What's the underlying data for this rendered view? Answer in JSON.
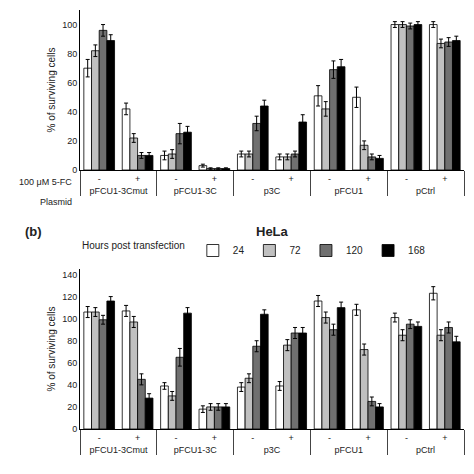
{
  "chart_data": [
    {
      "type": "bar",
      "ylabel": "% of surviving cells",
      "ylim": [
        0,
        110
      ],
      "yticks": [
        0,
        20,
        40,
        60,
        80,
        100
      ],
      "grid": false,
      "groups": [
        "pFCU1-3Cmut",
        "pFCU1-3C",
        "p3C",
        "pFCU1",
        "pCtrl"
      ],
      "categories": [
        "-",
        "+",
        "-",
        "+",
        "-",
        "+",
        "-",
        "+",
        "-",
        "+"
      ],
      "x_row_labels": [
        "100 μM 5-FC",
        "Plasmid"
      ],
      "series": [
        {
          "name": "24",
          "color": "white",
          "values": [
            70,
            42,
            10,
            3,
            11,
            9,
            51,
            50,
            100,
            100
          ],
          "errors": [
            6,
            4,
            3,
            1,
            2,
            2,
            7,
            7,
            2,
            2
          ]
        },
        {
          "name": "72",
          "color": "#c0c0c0",
          "values": [
            82,
            22,
            11,
            1,
            11,
            9,
            42,
            17,
            100,
            87
          ],
          "errors": [
            4,
            3,
            3,
            0.5,
            2,
            2,
            5,
            3,
            2,
            3
          ]
        },
        {
          "name": "120",
          "color": "#707070",
          "values": [
            96,
            10,
            25,
            1,
            32,
            11,
            69,
            9,
            99,
            88
          ],
          "errors": [
            4,
            2,
            7,
            0.5,
            5,
            2,
            6,
            2,
            2,
            3
          ]
        },
        {
          "name": "168",
          "color": "black",
          "values": [
            89,
            10,
            26,
            1,
            44,
            33,
            71,
            8,
            100,
            89
          ],
          "errors": [
            4,
            2,
            4,
            0.5,
            4,
            5,
            5,
            2,
            2,
            3
          ]
        }
      ]
    },
    {
      "type": "bar",
      "title": "HeLa",
      "panel_label": "(b)",
      "ylabel": "% of surviving cells",
      "ylim": [
        0,
        145
      ],
      "yticks": [
        0,
        20,
        40,
        60,
        80,
        100,
        120,
        140
      ],
      "grid": false,
      "legend": "upper left",
      "legend_title": "Hours post transfection",
      "groups": [
        "pFCU1-3Cmut",
        "pFCU1-3C",
        "p3C",
        "pFCU1",
        "pCtrl"
      ],
      "categories": [
        "-",
        "+",
        "-",
        "+",
        "-",
        "+",
        "-",
        "+",
        "-",
        "+"
      ],
      "series": [
        {
          "name": "24",
          "color": "white",
          "values": [
            106,
            107,
            39,
            18,
            38,
            39,
            116,
            108,
            101,
            123
          ],
          "errors": [
            5,
            5,
            3,
            3,
            4,
            4,
            5,
            5,
            4,
            6
          ]
        },
        {
          "name": "72",
          "color": "#c0c0c0",
          "values": [
            106,
            97,
            30,
            20,
            46,
            76,
            101,
            72,
            85,
            85
          ],
          "errors": [
            4,
            5,
            4,
            3,
            4,
            5,
            5,
            5,
            5,
            5
          ]
        },
        {
          "name": "120",
          "color": "#707070",
          "values": [
            99,
            45,
            65,
            20,
            75,
            87,
            90,
            25,
            95,
            92
          ],
          "errors": [
            4,
            5,
            8,
            3,
            5,
            5,
            5,
            4,
            4,
            5
          ]
        },
        {
          "name": "168",
          "color": "black",
          "values": [
            116,
            28,
            105,
            20,
            104,
            87,
            110,
            20,
            93,
            79
          ],
          "errors": [
            4,
            4,
            5,
            3,
            4,
            5,
            5,
            3,
            4,
            5
          ]
        }
      ]
    }
  ]
}
